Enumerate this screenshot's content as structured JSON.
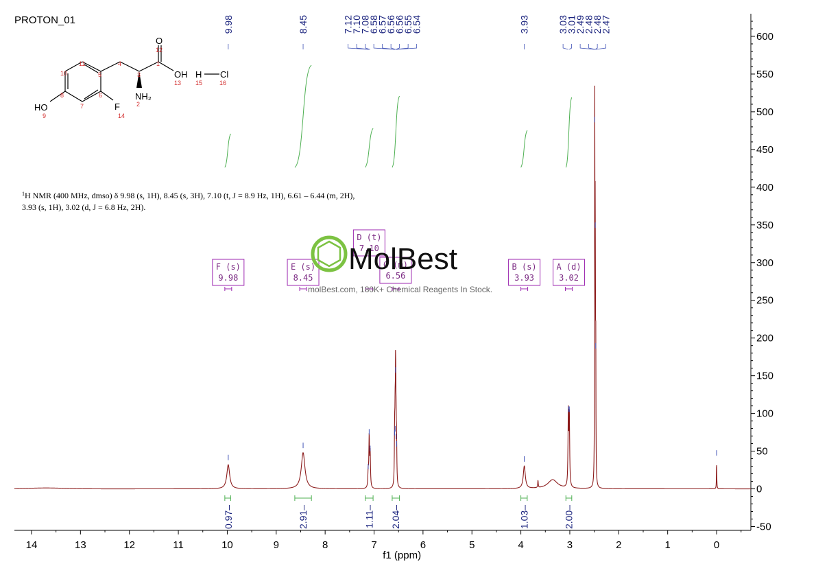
{
  "title": "PROTON_01",
  "nmr_text": {
    "line1_sup": "1",
    "line1": "H NMR (400 MHz, dmso) δ 9.98 (s, 1H), 8.45 (s, 3H), 7.10 (t, J = 8.9 Hz, 1H), 6.61 – 6.44 (m, 2H),",
    "line2": "3.93 (s, 1H), 3.02 (d, J = 6.8 Hz, 2H)."
  },
  "structure": {
    "atoms": {
      "o_top": "O",
      "oh": "OH",
      "h": "H",
      "cl": "Cl",
      "nh2": "NH₂",
      "ho": "HO",
      "f": "F"
    },
    "numbers": {
      "n12": "12",
      "n1": "1",
      "n13": "13",
      "n15": "15",
      "n16": "16",
      "n4": "4",
      "n3": "3",
      "n2": "2",
      "n11": "11",
      "n10": "10",
      "n5": "5",
      "n8": "8",
      "n6": "6",
      "n7": "7",
      "n9": "9",
      "n14": "14"
    }
  },
  "watermark": {
    "brand": "MolBest",
    "tagline": "molBest.com, 180K+ Chemical Reagents In Stock."
  },
  "chart_data": {
    "type": "line",
    "xlabel": "f1 (ppm)",
    "xlim": [
      14.35,
      -0.7
    ],
    "ylim": [
      -55,
      630
    ],
    "x_ticks": [
      "14",
      "13",
      "12",
      "11",
      "10",
      "9",
      "8",
      "7",
      "6",
      "5",
      "4",
      "3",
      "2",
      "1",
      "0"
    ],
    "y_ticks": [
      "600",
      "550",
      "500",
      "450",
      "400",
      "350",
      "300",
      "250",
      "200",
      "150",
      "100",
      "50",
      "0",
      "-50"
    ],
    "peaks": [
      {
        "ppm": 9.98,
        "height": 32,
        "width": 0.035
      },
      {
        "ppm": 8.45,
        "height": 48,
        "width": 0.045
      },
      {
        "ppm": 7.12,
        "height": 20,
        "width": 0.008
      },
      {
        "ppm": 7.1,
        "height": 66,
        "width": 0.008
      },
      {
        "ppm": 7.08,
        "height": 44,
        "width": 0.008
      },
      {
        "ppm": 6.58,
        "height": 65,
        "width": 0.006
      },
      {
        "ppm": 6.57,
        "height": 70,
        "width": 0.006
      },
      {
        "ppm": 6.56,
        "height": 148,
        "width": 0.006
      },
      {
        "ppm": 6.55,
        "height": 60,
        "width": 0.006
      },
      {
        "ppm": 6.54,
        "height": 50,
        "width": 0.006
      },
      {
        "ppm": 3.93,
        "height": 30,
        "width": 0.025
      },
      {
        "ppm": 3.65,
        "height": 10,
        "width": 0.006
      },
      {
        "ppm": 3.35,
        "height": 12,
        "width": 0.12
      },
      {
        "ppm": 3.03,
        "height": 96,
        "width": 0.008
      },
      {
        "ppm": 3.01,
        "height": 96,
        "width": 0.008
      },
      {
        "ppm": 2.49,
        "height": 480,
        "width": 0.004
      },
      {
        "ppm": 2.48,
        "height": 340,
        "width": 0.004
      },
      {
        "ppm": 2.47,
        "height": 180,
        "width": 0.004
      },
      {
        "ppm": 0.0,
        "height": 38,
        "width": 0.004
      }
    ],
    "peak_labels": [
      {
        "group": "9.98",
        "items": [
          "9.98"
        ]
      },
      {
        "group": "8.45",
        "items": [
          "8.45"
        ]
      },
      {
        "group": "7.10",
        "items": [
          "7.12",
          "7.10",
          "7.08",
          "6.58",
          "6.57",
          "6.56",
          "6.56",
          "6.55",
          "6.54"
        ]
      },
      {
        "group": "3.93",
        "items": [
          "3.93"
        ]
      },
      {
        "group": "3.02",
        "items": [
          "3.03",
          "3.01",
          "2.49",
          "2.48",
          "2.48",
          "2.47"
        ]
      }
    ],
    "integrals": [
      {
        "from": 10.05,
        "to": 9.93,
        "value": "0.97",
        "mid": 9.98
      },
      {
        "from": 8.62,
        "to": 8.28,
        "value": "2.91",
        "mid": 8.45
      },
      {
        "from": 7.18,
        "to": 7.02,
        "value": "1.11",
        "mid": 7.1
      },
      {
        "from": 6.63,
        "to": 6.48,
        "value": "2.04",
        "mid": 6.56
      },
      {
        "from": 4.0,
        "to": 3.87,
        "value": "1.03",
        "mid": 3.93
      },
      {
        "from": 3.08,
        "to": 2.96,
        "value": "2.00",
        "mid": 3.02
      }
    ],
    "multiplets": [
      {
        "label": "F (s)",
        "shift": "9.98",
        "ppm": 9.98
      },
      {
        "label": "E (s)",
        "shift": "8.45",
        "ppm": 8.45
      },
      {
        "label": "D (t)",
        "shift": "7.10",
        "ppm": 7.1
      },
      {
        "label": "C (m)",
        "shift": "6.56",
        "ppm": 6.56
      },
      {
        "label": "B (s)",
        "shift": "3.93",
        "ppm": 3.93
      },
      {
        "label": "A (d)",
        "shift": "3.02",
        "ppm": 3.02
      }
    ]
  },
  "colors": {
    "spectrum": "#8b1a1a",
    "peak_marker": "#3f51b5",
    "integral_curve": "#4caf50",
    "multiplet_box": "#9c27b0",
    "label_text": "#1a237e",
    "watermark_ring": "#7cc242"
  }
}
